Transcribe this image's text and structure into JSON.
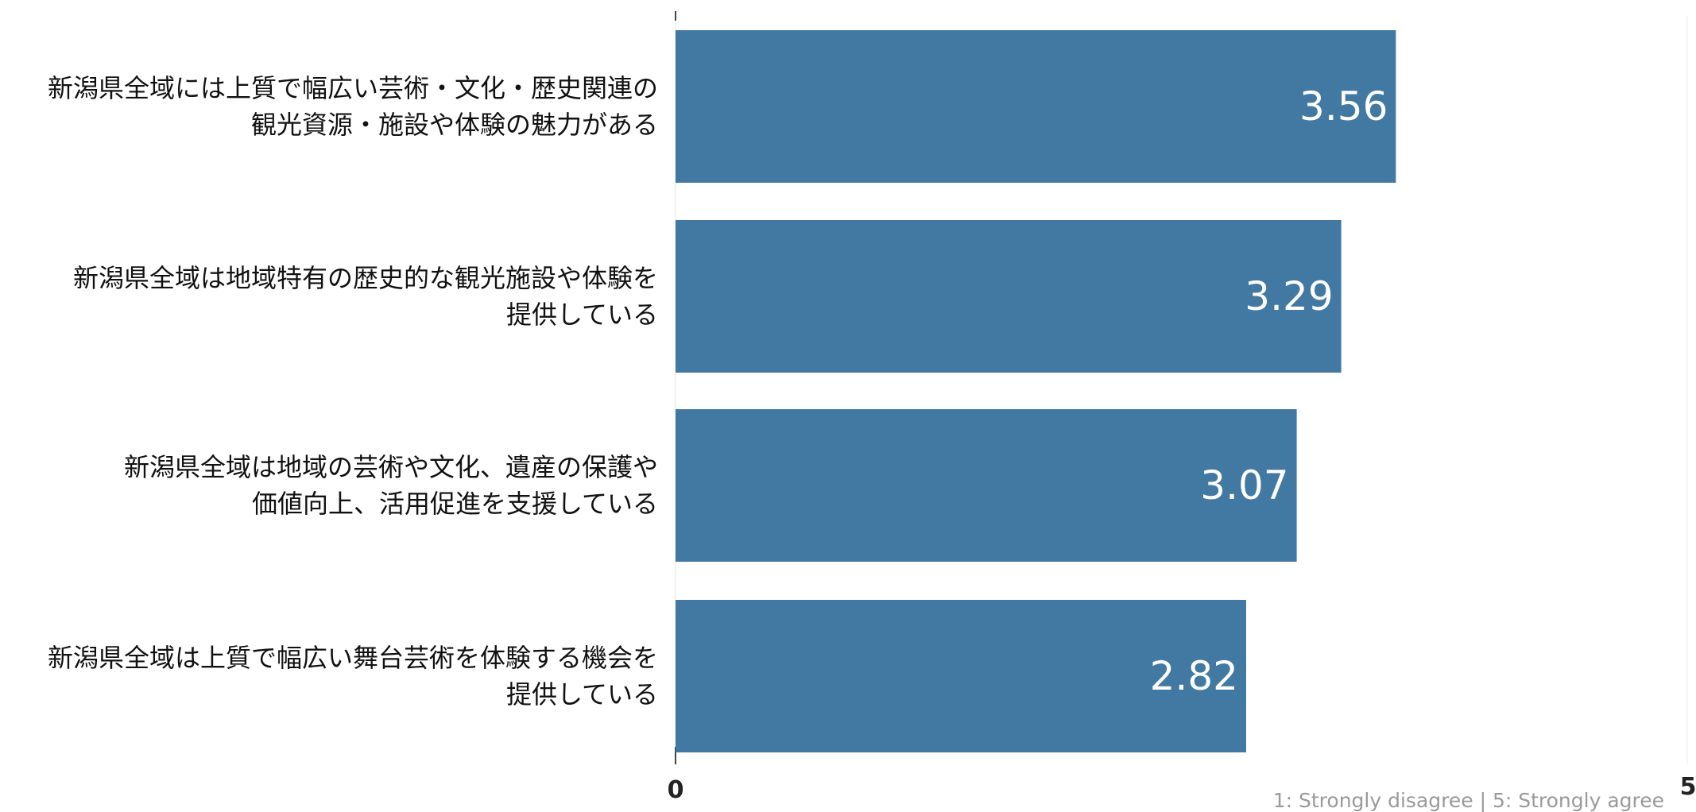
{
  "chart_data": {
    "type": "bar",
    "orientation": "horizontal",
    "categories": [
      "新潟県全域には上質で幅広い芸術・文化・歴史関連の\n観光資源・施設や体験の魅力がある",
      "新潟県全域は地域特有の歴史的な観光施設や体験を\n提供している",
      "新潟県全域は地域の芸術や文化、遺産の保護や\n価値向上、活用促進を支援している",
      "新潟県全域は上質で幅広い舞台芸術を体験する機会を\n提供している"
    ],
    "values": [
      3.56,
      3.29,
      3.07,
      2.82
    ],
    "value_labels": [
      "3.56",
      "3.29",
      "3.07",
      "2.82"
    ],
    "xlim": [
      0,
      5
    ],
    "x_ticks": [
      "0",
      "5"
    ],
    "grid": false,
    "bar_color": "#4279a2",
    "scale_note": "1: Strongly disagree | 5: Strongly agree"
  }
}
